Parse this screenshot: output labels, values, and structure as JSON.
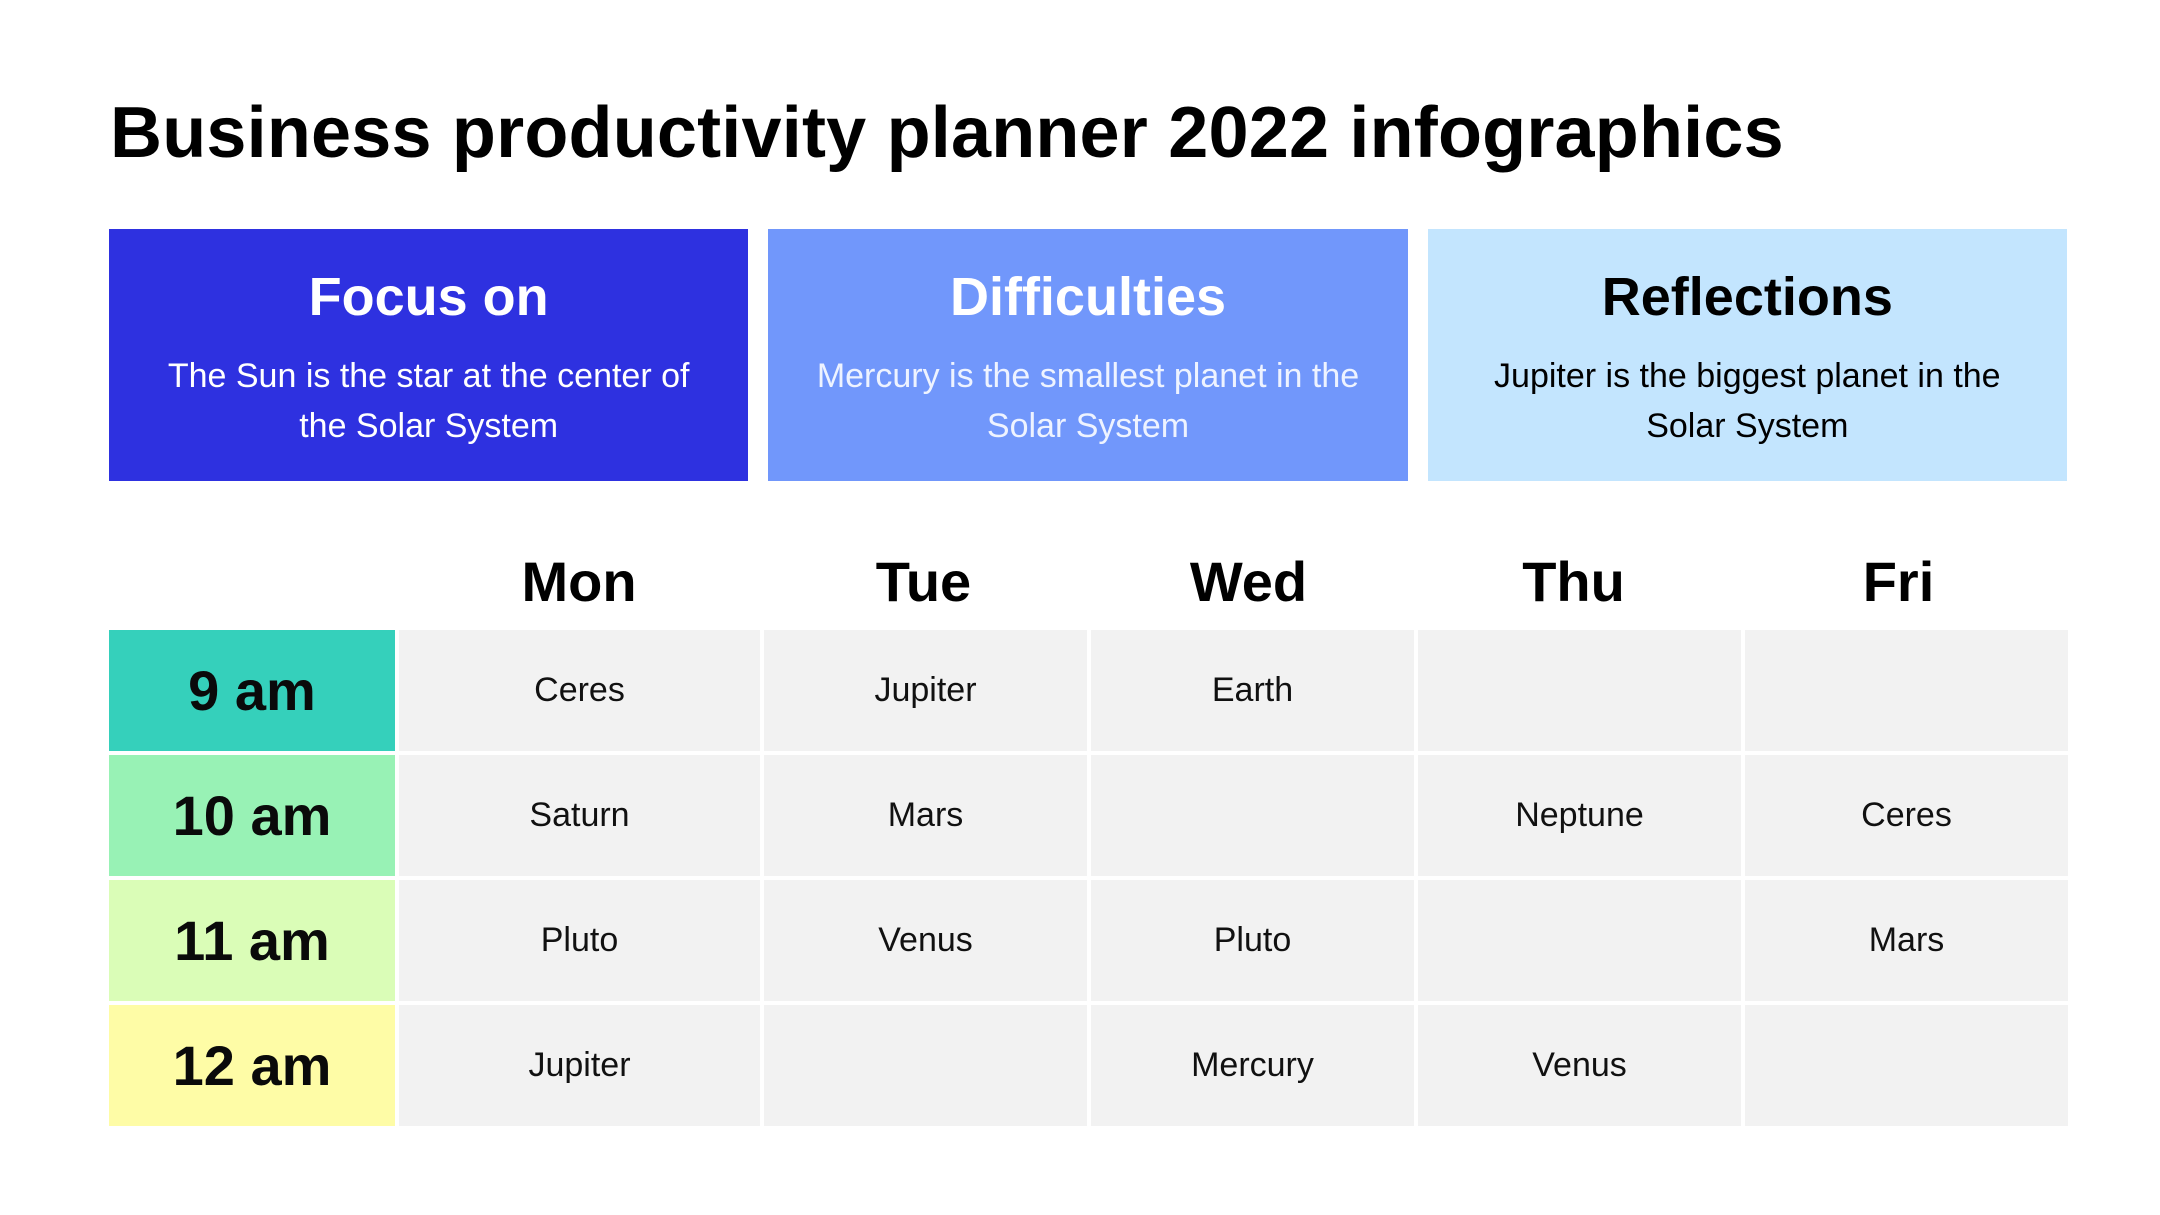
{
  "title": "Business productivity planner 2022 infographics",
  "cards": [
    {
      "title": "Focus on",
      "description": "The Sun is the star at the center of the Solar System",
      "color": "#2e31e0"
    },
    {
      "title": "Difficulties",
      "description": "Mercury is the smallest planet in the Solar System",
      "color": "#7197fb"
    },
    {
      "title": "Reflections",
      "description": "Jupiter is the biggest planet in the Solar System",
      "color": "#c3e5fe"
    }
  ],
  "days": [
    "Mon",
    "Tue",
    "Wed",
    "Thu",
    "Fri"
  ],
  "rows": [
    {
      "time": "9 am",
      "color": "#35d0bb",
      "cells": [
        "Ceres",
        "Jupiter",
        "Earth",
        "",
        ""
      ]
    },
    {
      "time": "10 am",
      "color": "#98f2b5",
      "cells": [
        "Saturn",
        "Mars",
        "",
        "Neptune",
        "Ceres"
      ]
    },
    {
      "time": "11 am",
      "color": "#dafdb7",
      "cells": [
        "Pluto",
        "Venus",
        "Pluto",
        "",
        "Mars"
      ]
    },
    {
      "time": "12 am",
      "color": "#fefca6",
      "cells": [
        "Jupiter",
        "",
        "Mercury",
        "Venus",
        ""
      ]
    }
  ]
}
